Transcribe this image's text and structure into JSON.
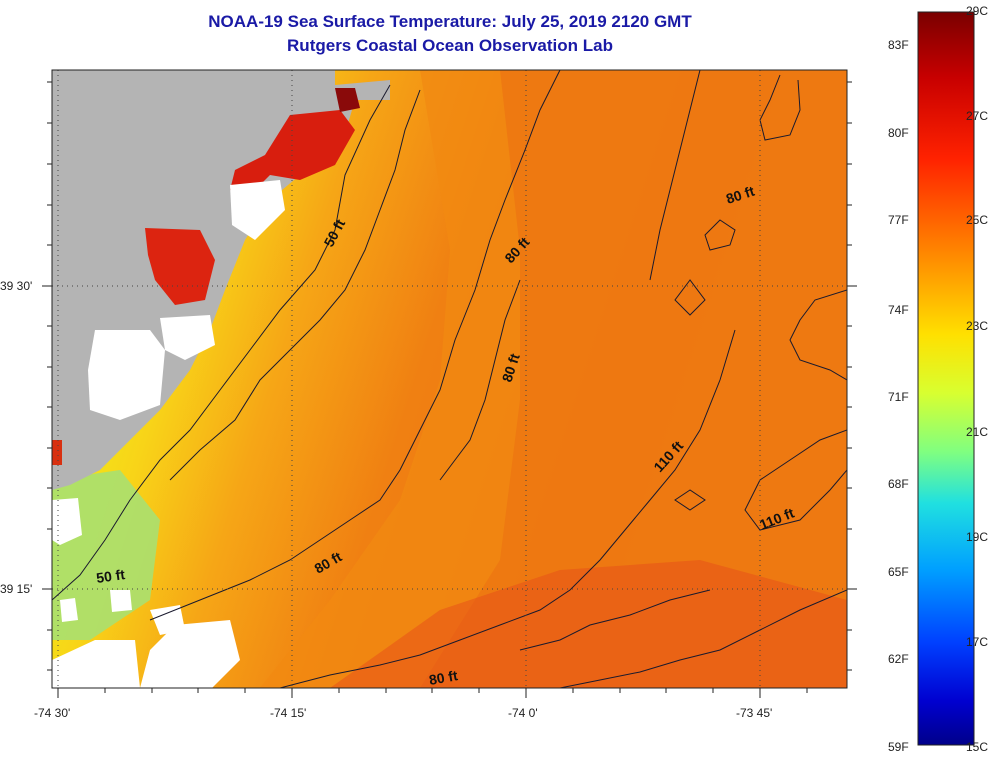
{
  "title": "NOAA-19 Sea Surface Temperature:  July 25, 2019 2120 GMT",
  "subtitle": "Rutgers Coastal Ocean Observation Lab",
  "axes": {
    "x_ticks": [
      "-74 30'",
      "-74 15'",
      "-74 0'",
      "-73 45'"
    ],
    "y_ticks": [
      "39 30'",
      "39 15'"
    ]
  },
  "depth_contours": [
    "50 ft",
    "50 ft",
    "80 ft",
    "80 ft",
    "80 ft",
    "80 ft",
    "80 ft",
    "110 ft",
    "110 ft"
  ],
  "colorbar": {
    "fahrenheit": [
      "83F",
      "80F",
      "77F",
      "74F",
      "71F",
      "68F",
      "65F",
      "62F",
      "59F"
    ],
    "celsius": [
      "29C",
      "27C",
      "25C",
      "23C",
      "21C",
      "19C",
      "17C",
      "15C"
    ]
  },
  "colors": {
    "title": "#1a1aa6",
    "land": "#b4b4b4",
    "cloud_nodata": "#ffffff",
    "warm": "#f07a10",
    "hot": "#d42010",
    "mild": "#f5ee10",
    "cool": "#aee070"
  }
}
